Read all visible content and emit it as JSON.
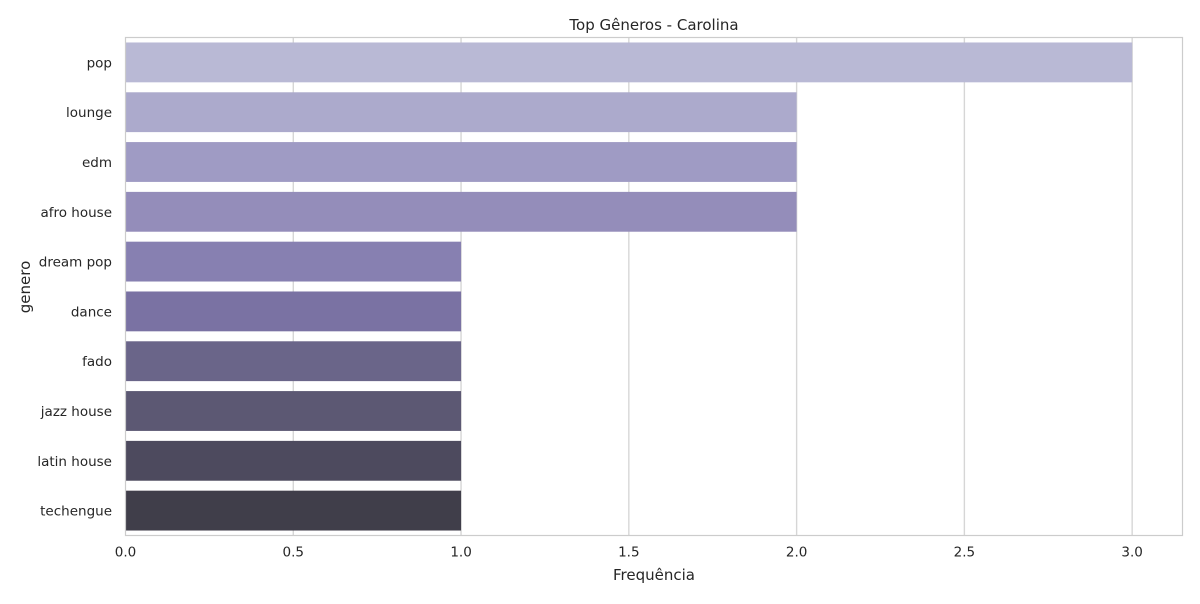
{
  "chart_data": {
    "type": "bar",
    "orientation": "horizontal",
    "title": "Top Gêneros - Carolina",
    "xlabel": "Frequência",
    "ylabel": "genero",
    "categories": [
      "pop",
      "lounge",
      "edm",
      "afro house",
      "dream pop",
      "dance",
      "fado",
      "jazz house",
      "latin house",
      "techengue"
    ],
    "values": [
      3,
      2,
      2,
      2,
      1,
      1,
      1,
      1,
      1,
      1
    ],
    "xlim": [
      0,
      3.15
    ],
    "xticks": [
      "0.0",
      "0.5",
      "1.0",
      "1.5",
      "2.0",
      "2.5",
      "3.0"
    ],
    "grid": "vertical",
    "colors": [
      "#b9b9d5",
      "#acaacc",
      "#9f9bc4",
      "#948dba",
      "#8780b1",
      "#7a72a3",
      "#6a6589",
      "#5c5873",
      "#4d4a5e",
      "#403e4a"
    ]
  }
}
